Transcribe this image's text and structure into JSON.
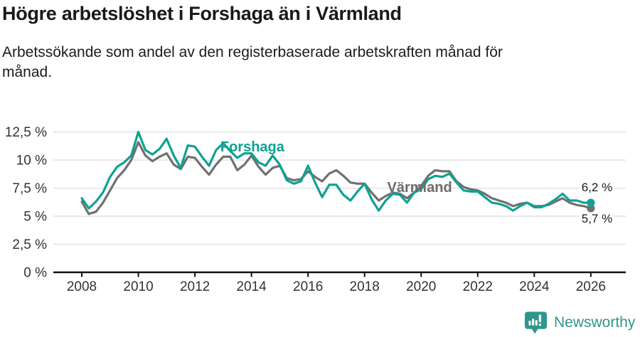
{
  "header": {
    "title": "Högre arbetslöshet i Forshaga än i Värmland",
    "subtitle_lines": [
      "Arbetssökande som andel av den registerbaserade arbetskraften månad för",
      "månad."
    ]
  },
  "colors": {
    "forshaga": "#0da293",
    "varmland": "#707070",
    "varmland_label": "#6b6b6b",
    "value_label": "#1a1a1a",
    "grid": "#dedede",
    "axis": "#111111",
    "tick_text": "#333333",
    "brand": "#2f968c"
  },
  "chart_data": {
    "type": "line",
    "title": "Högre arbetslöshet i Forshaga än i Värmland",
    "xlabel": "",
    "ylabel": "",
    "x_start": 2008,
    "x_step": 0.25,
    "xlim": [
      2007.0,
      2026.6
    ],
    "ylim": [
      0,
      12.5
    ],
    "grid": "horizontal",
    "legend_position": "inline-line-labels",
    "ytick_values": [
      0,
      2.5,
      5,
      7.5,
      10,
      12.5
    ],
    "ytick_labels": [
      "0 %",
      "2,5 %",
      "5 %",
      "7,5 %",
      "10 %",
      "12,5 %"
    ],
    "xtick_values": [
      2008,
      2010,
      2012,
      2014,
      2016,
      2018,
      2020,
      2022,
      2024,
      2026
    ],
    "xtick_labels": [
      "2008",
      "2010",
      "2012",
      "2014",
      "2016",
      "2018",
      "2020",
      "2022",
      "2024",
      "2026"
    ],
    "series": [
      {
        "id": "forshaga",
        "name": "Forshaga",
        "color_key": "forshaga",
        "end_label": "6,2 %",
        "end_value": 6.2,
        "values": [
          6.6,
          5.7,
          6.3,
          7.1,
          8.5,
          9.4,
          9.8,
          10.4,
          12.5,
          10.9,
          10.5,
          11.0,
          11.9,
          10.4,
          9.3,
          11.3,
          11.2,
          10.3,
          9.5,
          10.9,
          11.5,
          10.8,
          10.2,
          10.6,
          10.6,
          9.8,
          9.5,
          10.4,
          9.6,
          8.2,
          7.9,
          8.1,
          9.5,
          8.0,
          6.7,
          7.8,
          7.8,
          6.9,
          6.4,
          7.2,
          7.9,
          6.5,
          5.5,
          6.4,
          7.0,
          6.9,
          6.2,
          7.1,
          7.4,
          8.3,
          8.6,
          8.5,
          8.8,
          8.0,
          7.3,
          7.2,
          7.2,
          6.7,
          6.2,
          6.1,
          5.9,
          5.5,
          5.9,
          6.2,
          5.8,
          5.8,
          6.1,
          6.5,
          7.0,
          6.4,
          6.4,
          6.2,
          6.2
        ]
      },
      {
        "id": "varmland",
        "name": "Värmland",
        "color_key": "varmland",
        "end_label": "5,7 %",
        "end_value": 5.7,
        "values": [
          6.3,
          5.2,
          5.4,
          6.2,
          7.3,
          8.4,
          9.1,
          10.0,
          11.6,
          10.4,
          9.9,
          10.3,
          10.6,
          9.6,
          9.2,
          10.3,
          10.2,
          9.4,
          8.7,
          9.6,
          10.3,
          10.3,
          9.1,
          9.6,
          10.4,
          9.4,
          8.7,
          9.3,
          9.5,
          8.4,
          8.2,
          8.3,
          9.0,
          8.5,
          8.1,
          8.8,
          9.1,
          8.6,
          8.0,
          7.9,
          7.9,
          7.1,
          6.4,
          6.8,
          7.1,
          7.0,
          6.6,
          7.1,
          7.7,
          8.6,
          9.1,
          9.0,
          9.0,
          8.1,
          7.6,
          7.4,
          7.3,
          7.0,
          6.6,
          6.4,
          6.2,
          5.9,
          6.1,
          6.2,
          5.9,
          5.9,
          6.0,
          6.3,
          6.6,
          6.2,
          6.0,
          5.9,
          5.7
        ]
      }
    ],
    "annotations": [
      {
        "name": "line-label-forshaga",
        "text": "Forshaga",
        "year": 2012.9,
        "value": 10.77,
        "style": "forshaga_label"
      },
      {
        "name": "line-label-varmland",
        "text": "Värmland",
        "year": 2018.8,
        "value": 7.16,
        "style": "varmland_label"
      },
      {
        "name": "end-value-forshaga",
        "text": "6,2 %",
        "year": 2025.67,
        "value": 7.22,
        "style": "value_label"
      },
      {
        "name": "end-value-varmland",
        "text": "5,7 %",
        "year": 2025.67,
        "value": 4.44,
        "style": "value_label"
      }
    ]
  },
  "footer": {
    "brand": "Newsworthy"
  }
}
